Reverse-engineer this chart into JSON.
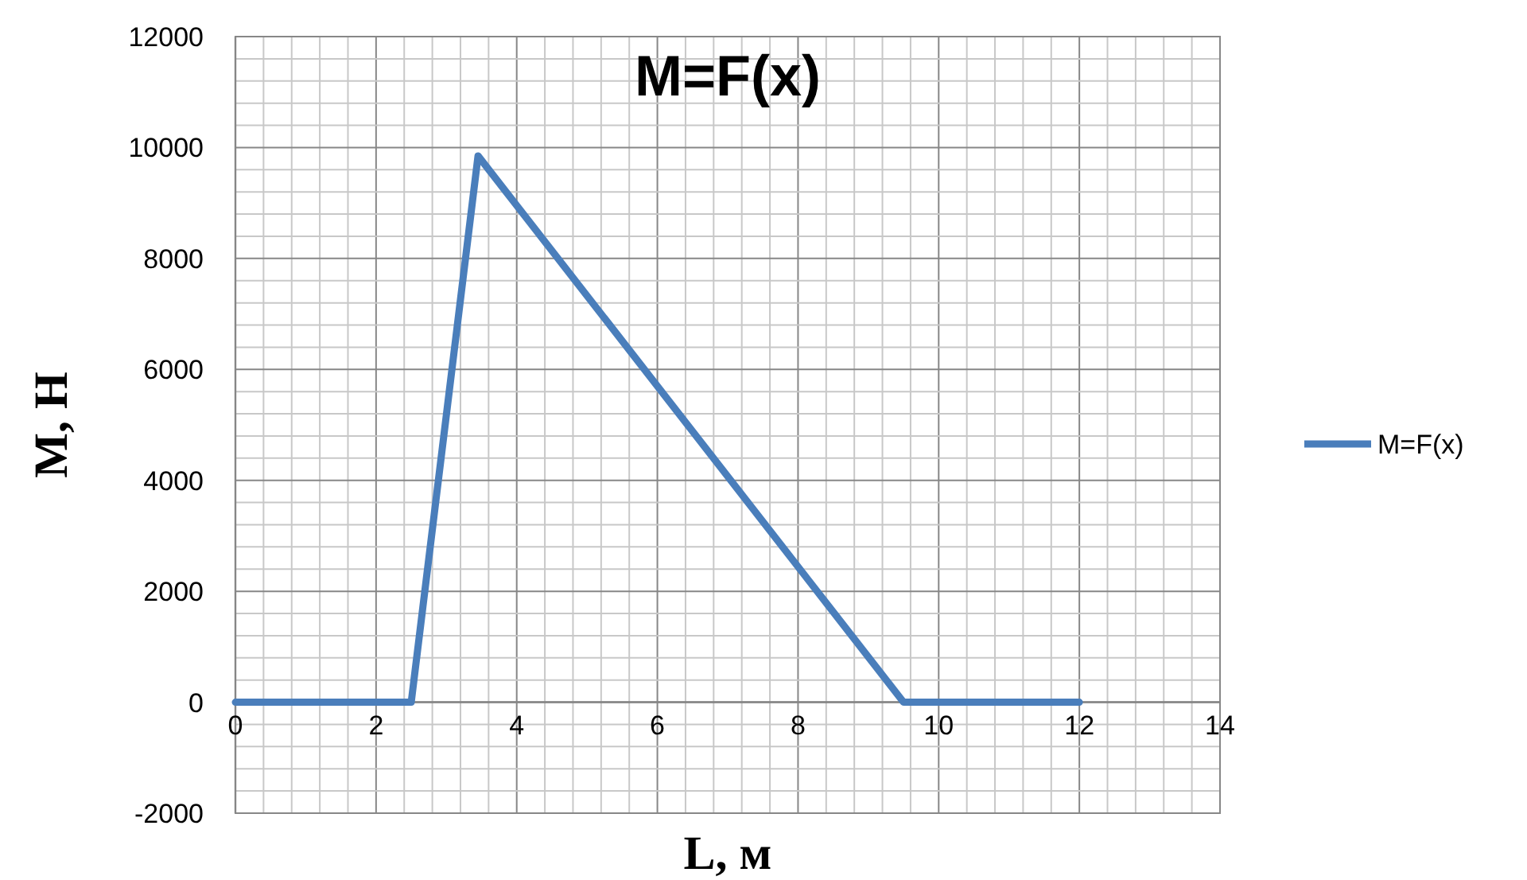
{
  "chart_data": {
    "type": "line",
    "title": "M=F(x)",
    "xlabel": "L, м",
    "ylabel": "M, H",
    "series": [
      {
        "name": "M=F(x)",
        "color": "#4a7ebb",
        "x": [
          0,
          2.5,
          3.45,
          9.5,
          12
        ],
        "values": [
          0,
          0,
          9850,
          0,
          0
        ]
      }
    ],
    "xlim": [
      0,
      14
    ],
    "ylim": [
      -2000,
      12000
    ],
    "xticks": [
      0,
      {
        "value": 0.4,
        "label": null
      },
      {
        "value": 0.8,
        "label": null
      },
      {
        "value": 1.2,
        "label": null
      },
      {
        "value": 1.6,
        "label": null
      },
      2,
      {
        "value": 2.4,
        "label": null
      },
      {
        "value": 2.8,
        "label": null
      },
      {
        "value": 3.2,
        "label": null
      },
      {
        "value": 3.6,
        "label": null
      },
      4,
      {
        "value": 4.4,
        "label": null
      },
      {
        "value": 4.8,
        "label": null
      },
      {
        "value": 5.2,
        "label": null
      },
      {
        "value": 5.6,
        "label": null
      },
      6,
      {
        "value": 6.4,
        "label": null
      },
      {
        "value": 6.8,
        "label": null
      },
      {
        "value": 7.2,
        "label": null
      },
      {
        "value": 7.6,
        "label": null
      },
      8,
      {
        "value": 8.4,
        "label": null
      },
      {
        "value": 8.8,
        "label": null
      },
      {
        "value": 9.2,
        "label": null
      },
      {
        "value": 9.6,
        "label": null
      },
      10,
      {
        "value": 10.4,
        "label": null
      },
      {
        "value": 10.8,
        "label": null
      },
      {
        "value": 11.2,
        "label": null
      },
      {
        "value": 11.6,
        "label": null
      },
      12,
      {
        "value": 12.4,
        "label": null
      },
      {
        "value": 12.8,
        "label": null
      },
      {
        "value": 13.2,
        "label": null
      },
      {
        "value": 13.6,
        "label": null
      },
      14
    ],
    "yticks": [
      -2000,
      {
        "value": -1600,
        "label": null
      },
      {
        "value": -1200,
        "label": null
      },
      {
        "value": -800,
        "label": null
      },
      {
        "value": -400,
        "label": null
      },
      0,
      {
        "value": 400,
        "label": null
      },
      {
        "value": 800,
        "label": null
      },
      {
        "value": 1200,
        "label": null
      },
      {
        "value": 1600,
        "label": null
      },
      2000,
      {
        "value": 2400,
        "label": null
      },
      {
        "value": 2800,
        "label": null
      },
      {
        "value": 3200,
        "label": null
      },
      {
        "value": 3600,
        "label": null
      },
      4000,
      {
        "value": 4400,
        "label": null
      },
      {
        "value": 4800,
        "label": null
      },
      {
        "value": 5200,
        "label": null
      },
      {
        "value": 5600,
        "label": null
      },
      6000,
      {
        "value": 6400,
        "label": null
      },
      {
        "value": 6800,
        "label": null
      },
      {
        "value": 7200,
        "label": null
      },
      {
        "value": 7600,
        "label": null
      },
      8000,
      {
        "value": 8400,
        "label": null
      },
      {
        "value": 8800,
        "label": null
      },
      {
        "value": 9200,
        "label": null
      },
      {
        "value": 9600,
        "label": null
      },
      10000,
      {
        "value": 10400,
        "label": null
      },
      {
        "value": 10800,
        "label": null
      },
      {
        "value": 11200,
        "label": null
      },
      {
        "value": 11600,
        "label": null
      },
      12000
    ],
    "grid": true,
    "legend": "right",
    "marker": "none",
    "line_style": "solid"
  }
}
